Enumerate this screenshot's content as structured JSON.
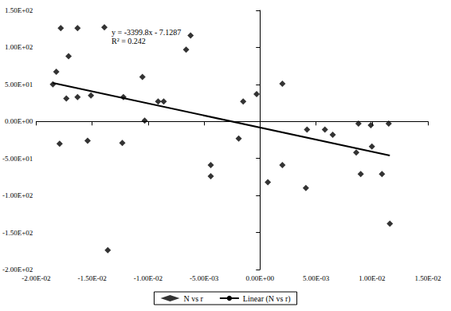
{
  "chart_data": {
    "type": "scatter",
    "annotations": [
      "y = -3399.8x - 7.1287",
      "R² = 0.242"
    ],
    "series": [
      {
        "name": "N vs r",
        "type": "scatter",
        "marker": "diamond",
        "color": "#000000",
        "x": [
          -0.0185,
          -0.0182,
          -0.0178,
          -0.0179,
          -0.0173,
          -0.0171,
          -0.0163,
          -0.0163,
          -0.0154,
          -0.0151,
          -0.0139,
          -0.0136,
          -0.0123,
          -0.0122,
          -0.0105,
          -0.0103,
          -0.0091,
          -0.0086,
          -0.0066,
          -0.0062,
          -0.0044,
          -0.0044,
          -0.0019,
          -0.0015,
          -0.0003,
          0.0007,
          0.002,
          0.002,
          0.0041,
          0.0042,
          0.0058,
          0.0065,
          0.0086,
          0.0088,
          0.009,
          0.0099,
          0.01,
          0.0109,
          0.0115,
          0.0116
        ],
        "values": [
          50,
          67,
          126,
          -30,
          31,
          88,
          126,
          33,
          -26,
          35,
          127,
          -174,
          -29,
          33,
          60,
          1,
          27,
          27,
          97,
          116,
          -59,
          -74,
          -23,
          27,
          37,
          -82,
          51,
          -59,
          -90,
          -11,
          -11,
          -18,
          -42,
          -3,
          -71,
          -5,
          -34,
          -71,
          -3,
          -138
        ]
      },
      {
        "name": "Linear (N vs r)",
        "type": "line",
        "line_style": "solid",
        "color": "#000000",
        "x": [
          -0.0185,
          0.0116
        ],
        "values": [
          52,
          -46
        ]
      }
    ],
    "xlim": [
      -0.02,
      0.015
    ],
    "xticks": [
      {
        "value": -0.02,
        "label": "-2.00E-02"
      },
      {
        "value": -0.015,
        "label": "-1.50E-02"
      },
      {
        "value": -0.01,
        "label": "-1.00E-02"
      },
      {
        "value": -0.005,
        "label": "-5.00E-03"
      },
      {
        "value": 0,
        "label": "0.00E+00"
      },
      {
        "value": 0.005,
        "label": "5.00E-03"
      },
      {
        "value": 0.01,
        "label": "1.00E-02"
      },
      {
        "value": 0.015,
        "label": "1.50E-02"
      }
    ],
    "ylim": [
      -200,
      150
    ],
    "yticks": [
      {
        "value": -200,
        "label": "-2.00E+02"
      },
      {
        "value": -150,
        "label": "-1.50E+02"
      },
      {
        "value": -100,
        "label": "-1.00E+02"
      },
      {
        "value": -50,
        "label": "-5.00E+01"
      },
      {
        "value": 0,
        "label": "0.00E+00"
      },
      {
        "value": 50,
        "label": "5.00E+01"
      },
      {
        "value": 100,
        "label": "1.00E+02"
      },
      {
        "value": 150,
        "label": "1.50E+02"
      }
    ],
    "grid": false,
    "legend": "bottom"
  }
}
